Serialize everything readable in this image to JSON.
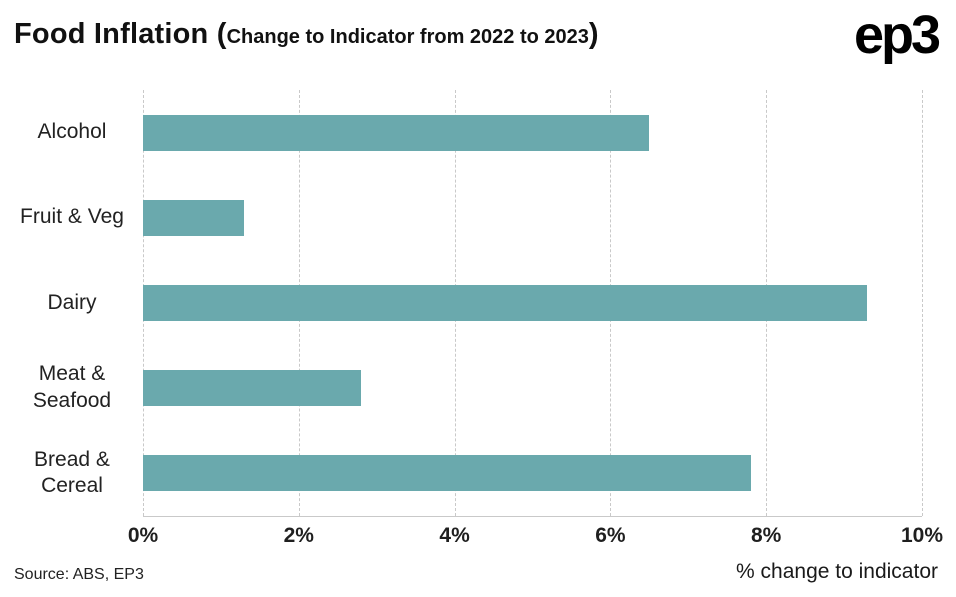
{
  "header": {
    "title_prefix": "Food Inflation (",
    "subtitle": "Change to Indicator from 2022 to 2023",
    "title_suffix": ")",
    "logo": "ep3"
  },
  "footer": {
    "source": "Source: ABS, EP3",
    "xlabel": "% change to indicator"
  },
  "colors": {
    "bar": "#6aa9ad",
    "grid": "#c9c9c9",
    "text": "#1a1a1a"
  },
  "chart_data": {
    "type": "bar",
    "orientation": "horizontal",
    "title": "Food Inflation (Change to Indicator from 2022 to 2023)",
    "categories": [
      "Alcohol",
      "Fruit & Veg",
      "Dairy",
      "Meat & Seafood",
      "Bread & Cereal"
    ],
    "values": [
      6.5,
      1.3,
      9.3,
      2.8,
      7.8
    ],
    "xlabel": "% change to indicator",
    "ylabel": "",
    "xlim": [
      0,
      10
    ],
    "xticks": [
      0,
      2,
      4,
      6,
      8,
      10
    ],
    "tick_labels": [
      "0%",
      "2%",
      "4%",
      "6%",
      "8%",
      "10%"
    ],
    "grid": "vertical-dashed",
    "legend": "none"
  }
}
